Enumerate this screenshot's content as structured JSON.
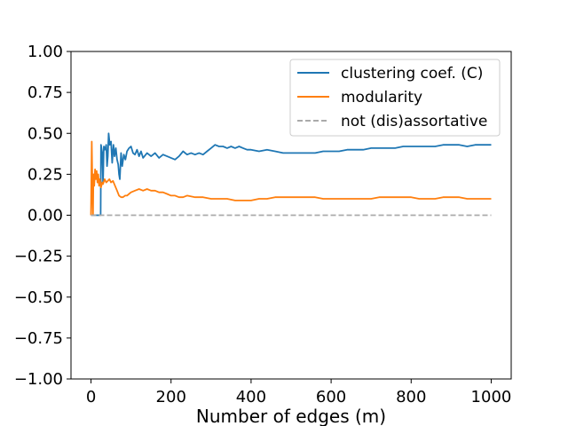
{
  "chart_data": {
    "type": "line",
    "title": "",
    "xlabel": "Number of edges (m)",
    "ylabel": "",
    "xlim": [
      -50,
      1050
    ],
    "ylim": [
      -1.0,
      1.0
    ],
    "x_ticks": [
      0,
      200,
      400,
      600,
      800,
      1000
    ],
    "x_tick_labels": [
      "0",
      "200",
      "400",
      "600",
      "800",
      "1000"
    ],
    "y_ticks": [
      1.0,
      0.75,
      0.5,
      0.25,
      0.0,
      -0.25,
      -0.5,
      -0.75,
      -1.0
    ],
    "y_tick_labels": [
      "1.00",
      "0.75",
      "0.50",
      "0.25",
      "0.00",
      "−0.25",
      "−0.50",
      "−0.75",
      "−1.00"
    ],
    "grid": false,
    "legend_position": "top-right",
    "series": [
      {
        "name": "clustering coef. (C)",
        "color": "#1f77b4",
        "style": "solid",
        "points": [
          [
            0,
            0.0
          ],
          [
            10,
            0.0
          ],
          [
            20,
            0.0
          ],
          [
            24,
            0.0
          ],
          [
            25,
            0.43
          ],
          [
            28,
            0.38
          ],
          [
            30,
            0.2
          ],
          [
            32,
            0.42
          ],
          [
            35,
            0.4
          ],
          [
            38,
            0.43
          ],
          [
            40,
            0.3
          ],
          [
            42,
            0.36
          ],
          [
            44,
            0.5
          ],
          [
            47,
            0.43
          ],
          [
            50,
            0.45
          ],
          [
            53,
            0.32
          ],
          [
            56,
            0.43
          ],
          [
            59,
            0.36
          ],
          [
            62,
            0.41
          ],
          [
            65,
            0.34
          ],
          [
            68,
            0.31
          ],
          [
            70,
            0.25
          ],
          [
            72,
            0.22
          ],
          [
            75,
            0.38
          ],
          [
            78,
            0.3
          ],
          [
            82,
            0.37
          ],
          [
            86,
            0.34
          ],
          [
            90,
            0.39
          ],
          [
            95,
            0.41
          ],
          [
            100,
            0.42
          ],
          [
            105,
            0.38
          ],
          [
            110,
            0.37
          ],
          [
            115,
            0.4
          ],
          [
            120,
            0.36
          ],
          [
            125,
            0.39
          ],
          [
            130,
            0.35
          ],
          [
            140,
            0.38
          ],
          [
            150,
            0.36
          ],
          [
            160,
            0.38
          ],
          [
            170,
            0.35
          ],
          [
            180,
            0.37
          ],
          [
            190,
            0.36
          ],
          [
            200,
            0.35
          ],
          [
            210,
            0.34
          ],
          [
            220,
            0.36
          ],
          [
            230,
            0.39
          ],
          [
            240,
            0.37
          ],
          [
            250,
            0.38
          ],
          [
            260,
            0.37
          ],
          [
            270,
            0.38
          ],
          [
            280,
            0.37
          ],
          [
            290,
            0.39
          ],
          [
            300,
            0.41
          ],
          [
            310,
            0.43
          ],
          [
            320,
            0.42
          ],
          [
            330,
            0.42
          ],
          [
            340,
            0.41
          ],
          [
            350,
            0.42
          ],
          [
            360,
            0.41
          ],
          [
            370,
            0.42
          ],
          [
            380,
            0.41
          ],
          [
            390,
            0.4
          ],
          [
            400,
            0.4
          ],
          [
            420,
            0.39
          ],
          [
            440,
            0.4
          ],
          [
            460,
            0.39
          ],
          [
            480,
            0.38
          ],
          [
            500,
            0.38
          ],
          [
            520,
            0.38
          ],
          [
            540,
            0.38
          ],
          [
            560,
            0.38
          ],
          [
            580,
            0.39
          ],
          [
            600,
            0.39
          ],
          [
            620,
            0.39
          ],
          [
            640,
            0.4
          ],
          [
            660,
            0.4
          ],
          [
            680,
            0.4
          ],
          [
            700,
            0.41
          ],
          [
            720,
            0.41
          ],
          [
            740,
            0.41
          ],
          [
            760,
            0.41
          ],
          [
            780,
            0.42
          ],
          [
            800,
            0.42
          ],
          [
            820,
            0.42
          ],
          [
            840,
            0.42
          ],
          [
            860,
            0.42
          ],
          [
            880,
            0.43
          ],
          [
            900,
            0.43
          ],
          [
            920,
            0.43
          ],
          [
            940,
            0.42
          ],
          [
            960,
            0.43
          ],
          [
            980,
            0.43
          ],
          [
            1000,
            0.43
          ]
        ]
      },
      {
        "name": "modularity",
        "color": "#ff7f0e",
        "style": "solid",
        "points": [
          [
            0,
            0.0
          ],
          [
            2,
            0.45
          ],
          [
            4,
            0.1
          ],
          [
            5,
            0.0
          ],
          [
            6,
            0.25
          ],
          [
            8,
            0.18
          ],
          [
            10,
            0.28
          ],
          [
            12,
            0.22
          ],
          [
            14,
            0.27
          ],
          [
            16,
            0.2
          ],
          [
            18,
            0.25
          ],
          [
            20,
            0.18
          ],
          [
            22,
            0.22
          ],
          [
            25,
            0.17
          ],
          [
            28,
            0.2
          ],
          [
            30,
            0.19
          ],
          [
            34,
            0.22
          ],
          [
            38,
            0.2
          ],
          [
            42,
            0.21
          ],
          [
            46,
            0.22
          ],
          [
            50,
            0.2
          ],
          [
            55,
            0.21
          ],
          [
            60,
            0.18
          ],
          [
            65,
            0.15
          ],
          [
            70,
            0.12
          ],
          [
            75,
            0.11
          ],
          [
            80,
            0.11
          ],
          [
            85,
            0.12
          ],
          [
            90,
            0.12
          ],
          [
            95,
            0.13
          ],
          [
            100,
            0.14
          ],
          [
            110,
            0.15
          ],
          [
            120,
            0.16
          ],
          [
            130,
            0.15
          ],
          [
            140,
            0.16
          ],
          [
            150,
            0.15
          ],
          [
            160,
            0.15
          ],
          [
            170,
            0.14
          ],
          [
            180,
            0.14
          ],
          [
            190,
            0.13
          ],
          [
            200,
            0.12
          ],
          [
            210,
            0.12
          ],
          [
            220,
            0.11
          ],
          [
            230,
            0.11
          ],
          [
            240,
            0.12
          ],
          [
            260,
            0.11
          ],
          [
            280,
            0.11
          ],
          [
            300,
            0.1
          ],
          [
            320,
            0.1
          ],
          [
            340,
            0.1
          ],
          [
            360,
            0.09
          ],
          [
            380,
            0.09
          ],
          [
            400,
            0.09
          ],
          [
            420,
            0.1
          ],
          [
            440,
            0.1
          ],
          [
            460,
            0.11
          ],
          [
            480,
            0.11
          ],
          [
            500,
            0.11
          ],
          [
            520,
            0.11
          ],
          [
            540,
            0.11
          ],
          [
            560,
            0.11
          ],
          [
            580,
            0.1
          ],
          [
            600,
            0.1
          ],
          [
            620,
            0.1
          ],
          [
            640,
            0.1
          ],
          [
            660,
            0.1
          ],
          [
            680,
            0.1
          ],
          [
            700,
            0.1
          ],
          [
            720,
            0.11
          ],
          [
            740,
            0.11
          ],
          [
            760,
            0.11
          ],
          [
            780,
            0.11
          ],
          [
            800,
            0.11
          ],
          [
            820,
            0.1
          ],
          [
            840,
            0.1
          ],
          [
            860,
            0.1
          ],
          [
            880,
            0.11
          ],
          [
            900,
            0.11
          ],
          [
            920,
            0.11
          ],
          [
            940,
            0.1
          ],
          [
            960,
            0.1
          ],
          [
            980,
            0.1
          ],
          [
            1000,
            0.1
          ]
        ]
      },
      {
        "name": "not (dis)assortative",
        "color": "#aaaaaa",
        "style": "dashed",
        "points": [
          [
            0,
            0.0
          ],
          [
            1000,
            0.0
          ]
        ]
      }
    ]
  }
}
